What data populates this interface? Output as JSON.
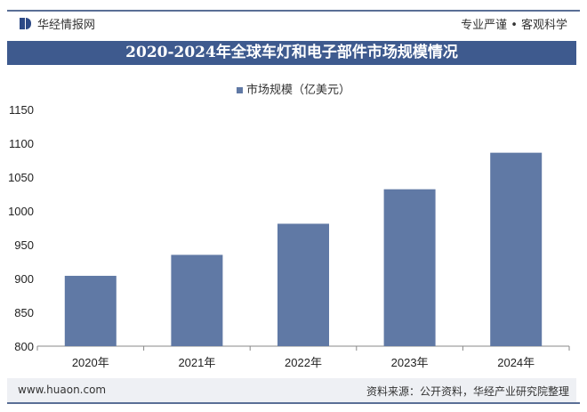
{
  "header": {
    "brand": "华经情报网",
    "slogan": "专业严谨 • 客观科学",
    "title": "2020-2024年全球车灯和电子部件市场规模情况"
  },
  "footer": {
    "url": "www.huaon.com",
    "source": "资料来源：公开资料，华经产业研究院整理"
  },
  "colors": {
    "bar": "#6079a5",
    "title_bg": "#3e5a8e"
  },
  "chart_data": {
    "type": "bar",
    "title": "2020-2024年全球车灯和电子部件市场规模情况",
    "categories": [
      "2020年",
      "2021年",
      "2022年",
      "2023年",
      "2024年"
    ],
    "series": [
      {
        "name": "市场规模（亿美元）",
        "values": [
          904,
          935,
          981,
          1032,
          1086
        ]
      }
    ],
    "ylim": [
      800,
      1150
    ],
    "yticks": [
      800,
      850,
      900,
      950,
      1000,
      1050,
      1100,
      1150
    ],
    "grid": false,
    "legend": "top-center"
  }
}
